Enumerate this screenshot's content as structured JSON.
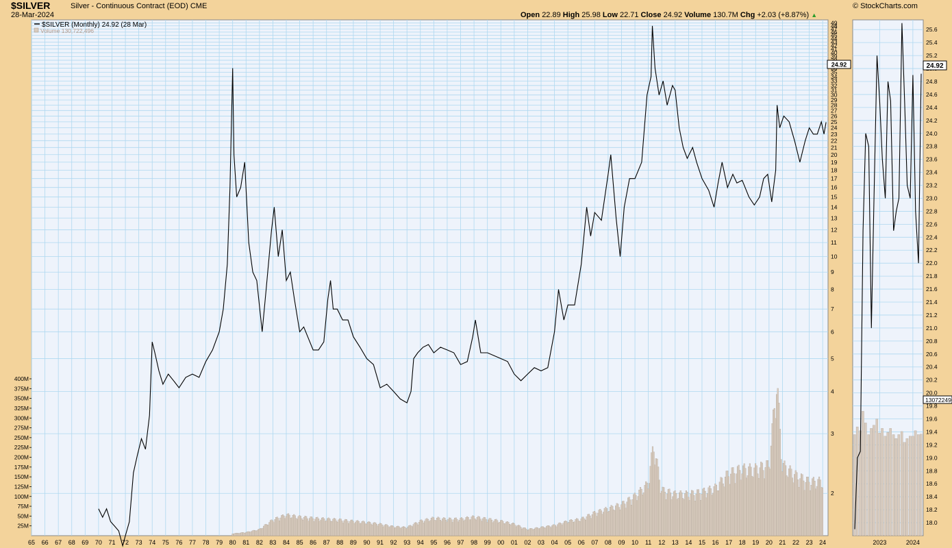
{
  "header": {
    "symbol": "$SILVER",
    "description": "Silver - Continuous Contract (EOD)",
    "exchange": "CME",
    "date": "28-Mar-2024",
    "brand": "© StockCharts.com",
    "open_label": "Open",
    "open": "22.89",
    "high_label": "High",
    "high": "25.98",
    "low_label": "Low",
    "low": "22.71",
    "close_label": "Close",
    "close": "24.92",
    "volume_label": "Volume",
    "volume": "130.7M",
    "chg_label": "Chg",
    "chg": "+2.03 (+8.87%)"
  },
  "legend": {
    "price": "$SILVER (Monthly) 24.92 (28 Mar)",
    "volume": "Volume 130,722,496"
  },
  "colors": {
    "background": "#f3d39b",
    "plot": "#eef3fb",
    "grid": "#aed8f0",
    "price_line": "#000000",
    "volume_bar": "#d9ccbf",
    "volume_edge": "#a89c8f"
  },
  "chart_data": [
    {
      "type": "line",
      "title": "$SILVER (Monthly) 24.92 (28 Mar)",
      "y_scale": "log",
      "y_ticks": [
        2,
        3,
        4,
        5,
        6,
        7,
        8,
        9,
        10,
        11,
        12,
        13,
        14,
        15,
        16,
        17,
        18,
        19,
        20,
        21,
        22,
        23,
        24,
        25,
        26,
        27,
        28,
        29,
        30,
        31,
        32,
        33,
        34,
        35,
        36,
        37,
        38,
        39,
        40,
        41,
        42,
        43,
        44,
        45,
        46,
        47,
        48,
        49
      ],
      "x_ticks": [
        "65",
        "66",
        "67",
        "68",
        "69",
        "70",
        "71",
        "72",
        "73",
        "74",
        "75",
        "76",
        "77",
        "78",
        "79",
        "80",
        "81",
        "82",
        "83",
        "84",
        "85",
        "86",
        "87",
        "88",
        "89",
        "90",
        "91",
        "92",
        "93",
        "94",
        "95",
        "96",
        "97",
        "98",
        "99",
        "00",
        "01",
        "02",
        "03",
        "04",
        "05",
        "06",
        "07",
        "08",
        "09",
        "10",
        "11",
        "12",
        "13",
        "14",
        "15",
        "16",
        "17",
        "18",
        "19",
        "20",
        "21",
        "22",
        "23",
        "24"
      ],
      "x_range": [
        1965,
        2024.4
      ],
      "y_range": [
        1.5,
        50
      ],
      "last_value_label": "24.92",
      "series": [
        {
          "x": [
            1970.0,
            1970.3,
            1970.6,
            1970.9,
            1971.2,
            1971.5,
            1971.8,
            1972.0,
            1972.3,
            1972.6,
            1972.9,
            1973.2,
            1973.5,
            1973.8,
            1974.0,
            1974.2,
            1974.5,
            1974.8,
            1975.2,
            1975.6,
            1976.0,
            1976.5,
            1977.0,
            1977.5,
            1978.0,
            1978.5,
            1979.0,
            1979.3,
            1979.6,
            1979.8,
            1980.0,
            1980.1,
            1980.3,
            1980.6,
            1980.9,
            1981.2,
            1981.5,
            1981.8,
            1982.2,
            1982.5,
            1982.9,
            1983.1,
            1983.4,
            1983.7,
            1984.0,
            1984.3,
            1984.6,
            1985.0,
            1985.3,
            1985.6,
            1986.0,
            1986.4,
            1986.8,
            1987.1,
            1987.3,
            1987.5,
            1987.8,
            1988.2,
            1988.6,
            1989.0,
            1989.5,
            1990.0,
            1990.5,
            1991.0,
            1991.5,
            1992.0,
            1992.5,
            1993.0,
            1993.3,
            1993.5,
            1993.8,
            1994.2,
            1994.6,
            1995.0,
            1995.5,
            1996.0,
            1996.5,
            1997.0,
            1997.5,
            1997.9,
            1998.1,
            1998.5,
            1999.0,
            1999.5,
            2000.0,
            2000.5,
            2001.0,
            2001.5,
            2002.0,
            2002.5,
            2003.0,
            2003.5,
            2004.0,
            2004.3,
            2004.7,
            2005.0,
            2005.5,
            2006.0,
            2006.4,
            2006.7,
            2007.0,
            2007.5,
            2008.0,
            2008.2,
            2008.6,
            2008.9,
            2009.2,
            2009.6,
            2010.0,
            2010.5,
            2010.9,
            2011.2,
            2011.3,
            2011.5,
            2011.8,
            2012.1,
            2012.4,
            2012.8,
            2013.0,
            2013.3,
            2013.6,
            2013.9,
            2014.3,
            2014.6,
            2015.0,
            2015.5,
            2015.9,
            2016.2,
            2016.5,
            2016.9,
            2017.3,
            2017.6,
            2018.0,
            2018.5,
            2018.9,
            2019.3,
            2019.6,
            2019.9,
            2020.2,
            2020.5,
            2020.6,
            2020.8,
            2021.1,
            2021.5,
            2021.9,
            2022.3,
            2022.7,
            2023.0,
            2023.3,
            2023.6,
            2023.9,
            2024.1,
            2024.25
          ],
          "y": [
            1.8,
            1.7,
            1.8,
            1.65,
            1.6,
            1.55,
            1.4,
            1.5,
            1.65,
            2.3,
            2.6,
            2.9,
            2.7,
            3.4,
            5.6,
            5.2,
            4.6,
            4.2,
            4.5,
            4.3,
            4.1,
            4.4,
            4.5,
            4.4,
            4.9,
            5.3,
            6.0,
            7.0,
            9.5,
            16.0,
            36.0,
            20.0,
            15.0,
            16.0,
            19.0,
            11.0,
            9.0,
            8.5,
            6.0,
            8.0,
            12.0,
            14.0,
            10.0,
            12.0,
            8.5,
            9.0,
            7.5,
            6.0,
            6.2,
            5.8,
            5.3,
            5.3,
            5.6,
            7.5,
            8.5,
            7.0,
            7.0,
            6.5,
            6.5,
            5.8,
            5.4,
            5.0,
            4.8,
            4.1,
            4.2,
            4.0,
            3.8,
            3.7,
            4.0,
            5.0,
            5.2,
            5.4,
            5.5,
            5.2,
            5.4,
            5.3,
            5.2,
            4.8,
            4.9,
            5.8,
            6.5,
            5.2,
            5.2,
            5.1,
            5.0,
            4.9,
            4.5,
            4.3,
            4.5,
            4.7,
            4.6,
            4.7,
            6.0,
            8.0,
            6.5,
            7.2,
            7.2,
            9.5,
            14.0,
            11.5,
            13.5,
            12.8,
            17.5,
            20.0,
            13.0,
            10.0,
            14.0,
            17.0,
            17.0,
            19.0,
            30.0,
            34.0,
            48.0,
            36.0,
            30.0,
            33.0,
            28.0,
            32.0,
            31.0,
            24.0,
            21.0,
            19.5,
            21.0,
            19.0,
            17.0,
            15.7,
            14.0,
            16.5,
            19.0,
            16.0,
            17.5,
            16.5,
            16.8,
            15.0,
            14.2,
            15.0,
            17.0,
            17.5,
            14.5,
            18.0,
            28.0,
            24.0,
            26.0,
            25.0,
            22.0,
            19.0,
            22.0,
            24.0,
            23.0,
            23.0,
            25.0,
            23.0,
            24.92
          ]
        }
      ]
    },
    {
      "type": "bar",
      "title": "Volume",
      "y_ticks": [
        "25M",
        "50M",
        "75M",
        "100M",
        "125M",
        "150M",
        "175M",
        "200M",
        "225M",
        "250M",
        "275M",
        "300M",
        "325M",
        "350M",
        "375M",
        "400M"
      ],
      "y_range": [
        0,
        400000000
      ],
      "last_value_label": "130722496",
      "series": [
        {
          "x": [
            1980.0,
            1981.0,
            1982.0,
            1983.0,
            1984.0,
            1985.0,
            1986.0,
            1987.0,
            1988.0,
            1989.0,
            1990.0,
            1991.0,
            1992.0,
            1993.0,
            1994.0,
            1995.0,
            1996.0,
            1997.0,
            1998.0,
            1999.0,
            2000.0,
            2001.0,
            2002.0,
            2003.0,
            2004.0,
            2005.0,
            2006.0,
            2007.0,
            2008.0,
            2009.0,
            2010.0,
            2011.0,
            2011.4,
            2012.0,
            2013.0,
            2014.0,
            2015.0,
            2016.0,
            2017.0,
            2018.0,
            2019.0,
            2020.0,
            2020.6,
            2021.0,
            2022.0,
            2023.0,
            2024.0
          ],
          "y": [
            5000000,
            8000000,
            15000000,
            38000000,
            50000000,
            45000000,
            42000000,
            40000000,
            38000000,
            35000000,
            32000000,
            28000000,
            22000000,
            20000000,
            35000000,
            42000000,
            40000000,
            40000000,
            45000000,
            40000000,
            35000000,
            28000000,
            15000000,
            20000000,
            25000000,
            35000000,
            40000000,
            55000000,
            65000000,
            75000000,
            95000000,
            125000000,
            220000000,
            110000000,
            100000000,
            100000000,
            105000000,
            115000000,
            150000000,
            160000000,
            160000000,
            170000000,
            370000000,
            170000000,
            145000000,
            130000000,
            130722496
          ]
        }
      ]
    },
    {
      "type": "line",
      "title": "$SILVER inset",
      "x_ticks": [
        "2023",
        "2024"
      ],
      "y_ticks": [
        "18.0",
        "18.2",
        "18.4",
        "18.6",
        "18.8",
        "19.0",
        "19.2",
        "19.4",
        "19.6",
        "19.8",
        "20.0",
        "20.2",
        "20.4",
        "20.6",
        "20.8",
        "21.0",
        "21.2",
        "21.4",
        "21.6",
        "21.8",
        "22.0",
        "22.2",
        "22.4",
        "22.6",
        "22.8",
        "23.0",
        "23.2",
        "23.4",
        "23.6",
        "23.8",
        "24.0",
        "24.2",
        "24.4",
        "24.6",
        "24.8",
        "25.0",
        "25.2",
        "25.4",
        "25.6"
      ],
      "y_range": [
        17.8,
        25.75
      ],
      "last_value_label": "24.92",
      "volume_last_label": "130722496",
      "series": [
        {
          "x": [
            2022.25,
            2022.33,
            2022.42,
            2022.5,
            2022.58,
            2022.67,
            2022.75,
            2022.83,
            2022.92,
            2023.0,
            2023.08,
            2023.17,
            2023.25,
            2023.33,
            2023.42,
            2023.5,
            2023.58,
            2023.67,
            2023.75,
            2023.83,
            2023.92,
            2024.0,
            2024.08,
            2024.17,
            2024.25
          ],
          "y": [
            17.9,
            19.0,
            19.1,
            22.5,
            24.0,
            23.8,
            21.0,
            23.0,
            25.2,
            24.5,
            23.6,
            23.0,
            24.8,
            24.5,
            22.5,
            22.8,
            23.0,
            25.7,
            24.5,
            23.2,
            23.0,
            24.9,
            22.8,
            22.0,
            24.92
          ]
        }
      ],
      "volume": [
        130000000,
        140000000,
        135000000,
        160000000,
        145000000,
        130000000,
        138000000,
        142000000,
        150000000,
        132000000,
        138000000,
        128000000,
        133000000,
        138000000,
        130000000,
        125000000,
        130000000,
        134000000,
        120000000,
        125000000,
        128000000,
        128000000,
        135000000,
        130000000,
        130722496
      ]
    }
  ]
}
